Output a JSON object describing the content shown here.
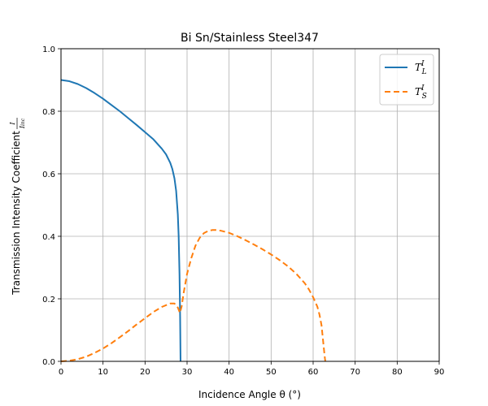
{
  "chart_data": {
    "type": "line",
    "title": "Bi Sn/Stainless Steel347",
    "xlabel": "Incidence Angle θ (°)",
    "ylabel": "Transmission Intensity Coefficient I/Iinc",
    "xlim": [
      0,
      90
    ],
    "ylim": [
      0,
      1
    ],
    "xticks": [
      "0",
      "10",
      "20",
      "30",
      "40",
      "50",
      "60",
      "70",
      "80",
      "90"
    ],
    "yticks": [
      "0.0",
      "0.2",
      "0.4",
      "0.6",
      "0.8",
      "1.0"
    ],
    "grid": true,
    "legend_position": "top-right",
    "series": [
      {
        "name": "T_L^I",
        "color": "#1f77b4",
        "style": "solid",
        "x": [
          0,
          2,
          4,
          6,
          8,
          10,
          12,
          14,
          16,
          18,
          20,
          22,
          24,
          25,
          26,
          26.5,
          27,
          27.4,
          27.8,
          28.0,
          28.2,
          28.35,
          28.45
        ],
        "y": [
          0.9,
          0.896,
          0.887,
          0.874,
          0.858,
          0.84,
          0.82,
          0.8,
          0.778,
          0.756,
          0.733,
          0.71,
          0.68,
          0.662,
          0.635,
          0.615,
          0.585,
          0.545,
          0.47,
          0.4,
          0.28,
          0.14,
          0.0
        ]
      },
      {
        "name": "T_S^I",
        "color": "#ff7f0e",
        "style": "dashed",
        "x": [
          0,
          2,
          4,
          6,
          8,
          10,
          12,
          14,
          16,
          18,
          20,
          22,
          24,
          26,
          27,
          27.8,
          28.3,
          28.7,
          29.2,
          30,
          31,
          32,
          33,
          34,
          35,
          36,
          37,
          38,
          40,
          42,
          44,
          46,
          48,
          50,
          52,
          54,
          56,
          58,
          59,
          60,
          61,
          61.5,
          62,
          62.3,
          62.6,
          62.8,
          62.9
        ],
        "y": [
          0.0,
          0.002,
          0.007,
          0.015,
          0.027,
          0.041,
          0.058,
          0.077,
          0.097,
          0.118,
          0.138,
          0.158,
          0.174,
          0.185,
          0.185,
          0.172,
          0.155,
          0.175,
          0.22,
          0.28,
          0.33,
          0.37,
          0.395,
          0.41,
          0.417,
          0.42,
          0.42,
          0.418,
          0.411,
          0.4,
          0.387,
          0.373,
          0.358,
          0.342,
          0.324,
          0.304,
          0.28,
          0.25,
          0.23,
          0.205,
          0.175,
          0.15,
          0.115,
          0.075,
          0.035,
          0.01,
          0.0
        ]
      }
    ]
  }
}
